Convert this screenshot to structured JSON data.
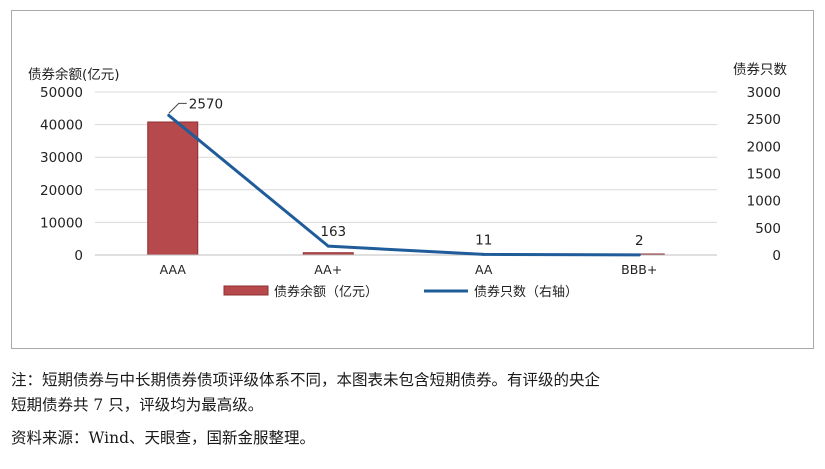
{
  "chart_data": {
    "type": "bar",
    "categories": [
      "AAA",
      "AA+",
      "AA",
      "BBB+"
    ],
    "series": [
      {
        "name": "债券余额（亿元）",
        "type": "bar",
        "axis": "left",
        "values": [
          40800,
          700,
          100,
          20
        ],
        "color": "#b5494b"
      },
      {
        "name": "债券只数（右轴）",
        "type": "line",
        "axis": "right",
        "values": [
          2570,
          163,
          11,
          2
        ],
        "color": "#1f5c99",
        "data_labels": [
          "2570",
          "163",
          "11",
          "2"
        ]
      }
    ],
    "ylabel": "债券余额(亿元)",
    "y2label": "债券只数",
    "ylim": [
      0,
      50000
    ],
    "y2lim": [
      0,
      3000
    ],
    "yticks": [
      "0",
      "10000",
      "20000",
      "30000",
      "40000",
      "50000"
    ],
    "y2ticks": [
      "0",
      "500",
      "1000",
      "1500",
      "2000",
      "2500",
      "3000"
    ],
    "grid": true,
    "legend_position": "bottom"
  },
  "notes": {
    "line1": "注：短期债券与中长期债券债项评级体系不同，本图表未包含短期债券。有评级的央企",
    "line2": "短期债券共 7 只，评级均为最高级。",
    "source": "资料来源：Wind、天眼查，国新金服整理。"
  }
}
